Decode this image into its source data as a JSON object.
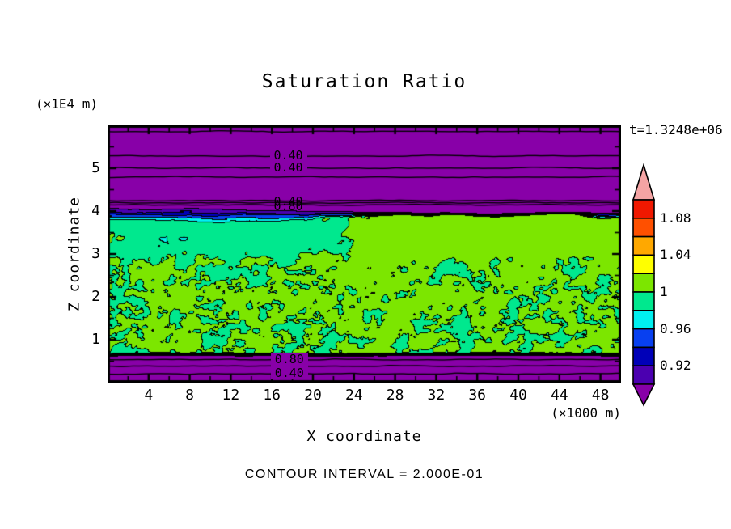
{
  "title": "Saturation Ratio",
  "time_label": "t=1.3248e+06",
  "y_axis": {
    "unit": "(×1E4 m)",
    "label": "Z coordinate",
    "ticks": [
      "1",
      "2",
      "3",
      "4",
      "5"
    ]
  },
  "x_axis": {
    "label": "X coordinate",
    "unit": "(×1000 m)",
    "ticks": [
      "4",
      "8",
      "12",
      "16",
      "20",
      "24",
      "28",
      "32",
      "36",
      "40",
      "44",
      "48"
    ]
  },
  "footnote": "CONTOUR INTERVAL = 2.000E-01",
  "colorbar": {
    "labels": [
      "1.08",
      "1.04",
      "1",
      "0.96",
      "0.92"
    ],
    "colors_top_to_bottom": [
      "#F01800",
      "#FF5000",
      "#FFA800",
      "#FFFF00",
      "#7CE600",
      "#00E88E",
      "#00F0F0",
      "#0840F0",
      "#0000B8",
      "#4B00B0"
    ],
    "arrow_top": "#F4A4A4",
    "arrow_bottom": "#8800A8"
  },
  "contour_labels": [
    {
      "text": "0.40",
      "x_km": 17.6,
      "z": 5.3,
      "masked": true
    },
    {
      "text": "0.40",
      "x_km": 17.6,
      "z": 5.02,
      "masked": true
    },
    {
      "text": "0.40",
      "x_km": 17.6,
      "z": 4.23,
      "masked": false
    },
    {
      "text": "0.80",
      "x_km": 17.6,
      "z": 4.11,
      "masked": false
    },
    {
      "text": "0.80",
      "x_km": 17.7,
      "z": 0.55,
      "masked": true
    },
    {
      "text": "0.40",
      "x_km": 17.7,
      "z": 0.22,
      "masked": true
    }
  ],
  "chart_data": {
    "type": "heatmap",
    "title": "Saturation Ratio",
    "xlabel": "X coordinate",
    "xunit": "(×1000 m)",
    "xlim": [
      0,
      50
    ],
    "xticks_major": [
      4,
      8,
      12,
      16,
      20,
      24,
      28,
      32,
      36,
      40,
      44,
      48
    ],
    "xticks_minor_step": 2,
    "ylabel": "Z coordinate",
    "yunit": "(×1E4 m)",
    "ylim": [
      0,
      6
    ],
    "yticks_major": [
      1,
      2,
      3,
      4,
      5
    ],
    "yticks_minor_step": 0.5,
    "time": "t=1.3248e+06",
    "contour_interval": 0.2,
    "levels": {
      "min": 0.9,
      "max": 1.1,
      "step": 0.02,
      "below_color": "#8800A8",
      "above_color": "#F4A4A4",
      "colors_low_to_high": [
        "#4B00B0",
        "#0000B8",
        "#0840F0",
        "#00F0F0",
        "#00E88E",
        "#7CE600",
        "#FFFF00",
        "#FFA800",
        "#FF5000",
        "#F01800"
      ],
      "labeled_boundaries": [
        1.08,
        1.04,
        1,
        0.96,
        0.92
      ]
    },
    "line_contours": [
      {
        "z": 5.87,
        "value": null
      },
      {
        "z": 5.3,
        "value": 0.4
      },
      {
        "z": 5.02,
        "value": 0.4
      },
      {
        "z": 4.81,
        "value": null
      },
      {
        "z": 4.26,
        "value": 0.4
      },
      {
        "z": 4.21,
        "value": null
      },
      {
        "z": 4.16,
        "value": 0.8
      },
      {
        "z": 0.55,
        "value": 0.8
      },
      {
        "z": 0.4,
        "value": null
      },
      {
        "z": 0.22,
        "value": 0.4
      }
    ],
    "regions": [
      {
        "z_range": [
          4.05,
          6.0
        ],
        "value": "< 0.9",
        "description": "uniform purple layer with horizontal line contours (0.40 labels)"
      },
      {
        "z_range": [
          3.7,
          4.08
        ],
        "value": "0.90-0.98",
        "description": "stratified interface band: indigo/navy/blue/cyan wisps, thick on left half, thin on right with cyan sliver at far right"
      },
      {
        "z_range": [
          0.65,
          4.0
        ],
        "value": "0.98-1.02",
        "description": "turbulent mixed layer: spring-green (0.98-1.00) and chartreuse (1.00-1.02) blobs with black contour outlines; chartreuse sheet in upper-right; blobs smaller and denser toward bottom"
      },
      {
        "z_range": [
          0.0,
          0.64
        ],
        "value": "< 0.9",
        "description": "uniform purple layer with horizontal line contours (0.80, 0.40 labels)"
      }
    ]
  }
}
